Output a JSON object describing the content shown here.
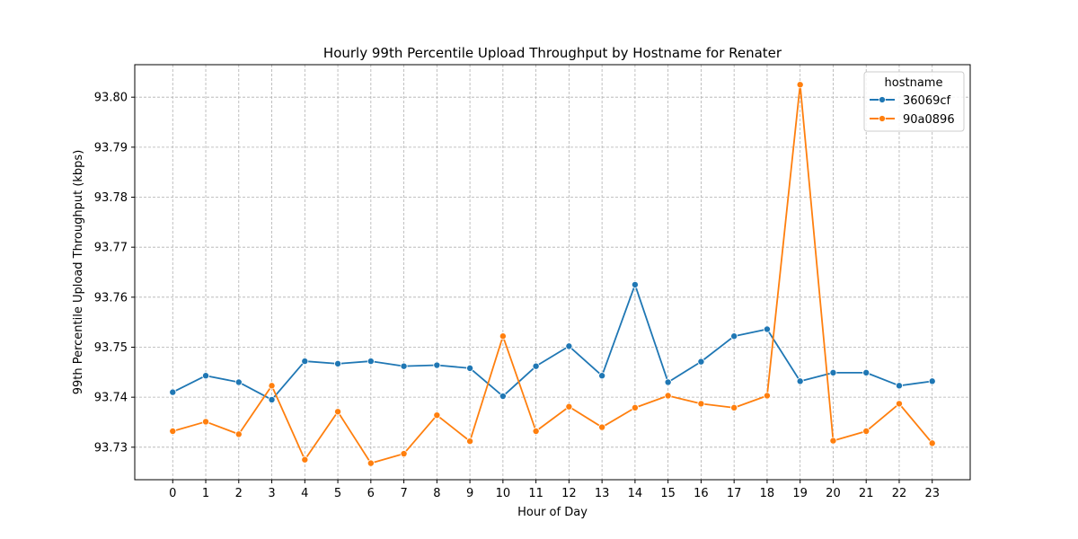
{
  "chart_data": {
    "type": "line",
    "title": "Hourly 99th Percentile Upload Throughput by Hostname for Renater",
    "xlabel": "Hour of Day",
    "ylabel": "99th Percentile Upload Throughput (kbps)",
    "x": [
      0,
      1,
      2,
      3,
      4,
      5,
      6,
      7,
      8,
      9,
      10,
      11,
      12,
      13,
      14,
      15,
      16,
      17,
      18,
      19,
      20,
      21,
      22,
      23
    ],
    "xlim": [
      -1.15,
      24.15
    ],
    "ylim": [
      93.7235,
      93.8065
    ],
    "yticks": [
      "93.73",
      "93.74",
      "93.75",
      "93.76",
      "93.77",
      "93.78",
      "93.79",
      "93.80"
    ],
    "grid": true,
    "legend": {
      "title": "hostname",
      "placement": "top-right"
    },
    "series": [
      {
        "name": "36069cf",
        "color": "#1f77b4",
        "values": [
          93.741,
          93.7443,
          93.743,
          93.7395,
          93.7472,
          93.7467,
          93.7472,
          93.7462,
          93.7464,
          93.7458,
          93.7402,
          93.7462,
          93.7502,
          93.7443,
          93.7625,
          93.743,
          93.7471,
          93.7522,
          93.7536,
          93.7432,
          93.7449,
          93.7449,
          93.7423,
          93.7432
        ]
      },
      {
        "name": "90a0896",
        "color": "#ff7f0e",
        "values": [
          93.7332,
          93.7351,
          93.7326,
          93.7423,
          93.7275,
          93.7371,
          93.7268,
          93.7287,
          93.7364,
          93.7312,
          93.7522,
          93.7332,
          93.7381,
          93.734,
          93.7379,
          93.7403,
          93.7387,
          93.7379,
          93.7403,
          93.8025,
          93.7313,
          93.7332,
          93.7387,
          93.7308
        ]
      }
    ]
  }
}
